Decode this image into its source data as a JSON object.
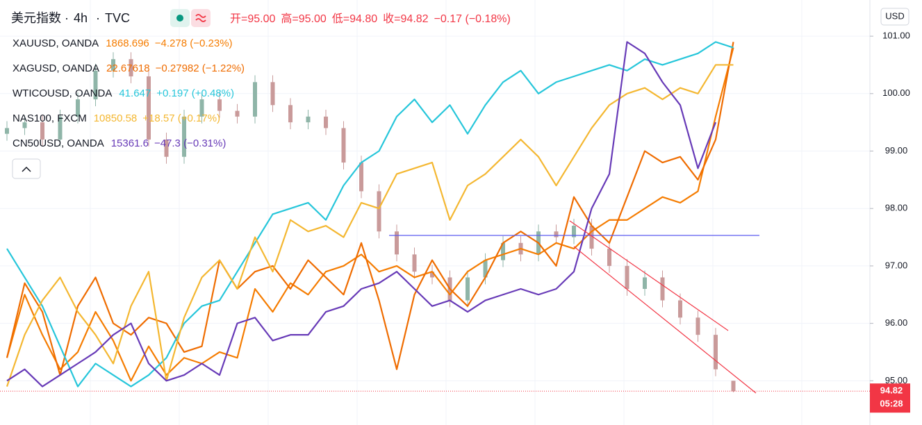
{
  "chart_data": {
    "type": "candlestick",
    "title": "美元指数",
    "interval": "4h",
    "source": "TVC",
    "ohlc_text": [
      "开=95.00",
      "高=95.00",
      "低=94.80",
      "收=94.82"
    ],
    "change_text": "−0.17 (−0.18%)",
    "currency": "USD",
    "last_price": {
      "value": 94.82,
      "label": "94.82"
    },
    "countdown": "05:28",
    "categories": [
      null,
      null,
      null,
      null,
      null,
      null,
      null,
      null,
      null,
      null,
      null,
      null,
      null,
      null,
      null,
      null,
      null,
      null,
      null,
      null,
      null,
      null,
      null,
      null,
      null,
      null,
      null,
      null,
      null,
      null,
      null,
      null,
      null,
      null,
      null,
      null,
      null,
      null,
      null,
      null,
      null,
      null
    ],
    "open": [
      99.3,
      99.4,
      99.5,
      99.2,
      99.6,
      99.9,
      100.4,
      100.6,
      100.3,
      99.2,
      98.9,
      99.6,
      99.9,
      99.7,
      99.6,
      100.2,
      99.8,
      99.5,
      99.6,
      99.4,
      98.8,
      98.3,
      97.6,
      97.2,
      96.9,
      96.8,
      96.4,
      96.8,
      97.1,
      97.4,
      97.2,
      97.6,
      97.5,
      97.7,
      97.3,
      97.0,
      96.6,
      96.8,
      96.4,
      96.1,
      95.8,
      95.0
    ],
    "high": [
      99.52,
      99.62,
      99.62,
      99.72,
      100.02,
      100.52,
      100.72,
      100.72,
      100.42,
      99.32,
      99.72,
      100.02,
      100.02,
      99.82,
      100.32,
      100.32,
      99.92,
      99.72,
      99.72,
      99.52,
      98.92,
      98.42,
      97.72,
      97.32,
      97.02,
      96.92,
      96.92,
      97.22,
      97.52,
      97.52,
      97.72,
      97.72,
      97.82,
      97.82,
      97.42,
      97.12,
      96.92,
      96.92,
      96.52,
      96.22,
      95.92,
      95.0
    ],
    "low": [
      99.18,
      99.28,
      99.08,
      99.08,
      99.48,
      99.78,
      100.28,
      100.18,
      99.08,
      98.78,
      98.78,
      99.48,
      99.58,
      99.48,
      99.48,
      99.68,
      99.38,
      99.38,
      99.28,
      98.68,
      98.18,
      97.48,
      97.08,
      96.78,
      96.68,
      96.28,
      96.28,
      96.68,
      96.98,
      97.08,
      97.08,
      97.38,
      97.38,
      97.18,
      96.88,
      96.48,
      96.48,
      96.28,
      95.98,
      95.68,
      95.08,
      94.8
    ],
    "close": [
      99.4,
      99.5,
      99.2,
      99.6,
      99.9,
      100.4,
      100.6,
      100.3,
      99.2,
      98.9,
      99.6,
      99.9,
      99.7,
      99.6,
      100.2,
      99.8,
      99.5,
      99.6,
      99.4,
      98.8,
      98.3,
      97.6,
      97.2,
      96.9,
      96.8,
      96.4,
      96.8,
      97.1,
      97.4,
      97.2,
      97.6,
      97.5,
      97.7,
      97.3,
      97.0,
      96.6,
      96.8,
      96.4,
      96.1,
      95.8,
      95.2,
      94.82
    ],
    "up_color": "#8fb5a8",
    "down_color": "#c99a9a",
    "series": [
      {
        "name": "XAUUSD, OANDA",
        "last": "1868.696",
        "change": "−4.278 (−0.23%)",
        "color": "#f57c00",
        "values": [
          95.4,
          96.5,
          95.8,
          95.2,
          95.5,
          96.2,
          95.7,
          95.0,
          95.6,
          95.1,
          95.4,
          95.3,
          95.5,
          95.4,
          96.6,
          96.2,
          96.7,
          96.5,
          96.9,
          97.0,
          97.2,
          96.9,
          97.0,
          96.8,
          96.9,
          96.5,
          96.9,
          97.1,
          97.2,
          97.3,
          97.2,
          97.4,
          97.3,
          97.6,
          97.8,
          97.8,
          98.0,
          98.2,
          98.1,
          98.3,
          99.6,
          100.8
        ]
      },
      {
        "name": "XAGUSD, OANDA",
        "last": "22.67618",
        "change": "−0.27982 (−1.22%)",
        "color": "#ef6c00",
        "values": [
          95.4,
          96.7,
          96.2,
          95.1,
          96.3,
          96.8,
          96.0,
          95.8,
          96.1,
          96.0,
          95.5,
          95.6,
          97.1,
          96.6,
          96.9,
          97.0,
          96.6,
          97.1,
          96.8,
          96.5,
          97.4,
          96.4,
          95.2,
          96.5,
          97.1,
          96.6,
          96.3,
          96.8,
          97.4,
          97.6,
          97.4,
          97.0,
          98.2,
          97.7,
          97.4,
          98.2,
          99.0,
          98.8,
          98.9,
          98.5,
          99.2,
          100.9
        ]
      },
      {
        "name": "WTICOUSD, OANDA",
        "last": "41.647",
        "change": "+0.197 (+0.48%)",
        "color": "#26c6da",
        "values": [
          97.3,
          96.8,
          96.3,
          95.6,
          94.9,
          95.3,
          95.1,
          94.9,
          95.1,
          95.4,
          96.0,
          96.3,
          96.4,
          96.9,
          97.4,
          97.9,
          98.0,
          98.1,
          97.8,
          98.4,
          98.8,
          99.0,
          99.6,
          99.9,
          99.5,
          99.8,
          99.3,
          99.8,
          100.2,
          100.4,
          100.0,
          100.2,
          100.3,
          100.4,
          100.5,
          100.4,
          100.6,
          100.5,
          100.6,
          100.7,
          100.9,
          100.8
        ]
      },
      {
        "name": "NAS100, FXCM",
        "last": "10850.58",
        "change": "+18.57 (+0.17%)",
        "color": "#f4b731",
        "values": [
          94.9,
          95.8,
          96.4,
          96.8,
          96.2,
          95.8,
          95.3,
          96.3,
          96.9,
          95.0,
          96.1,
          96.8,
          97.1,
          96.6,
          97.5,
          96.9,
          97.8,
          97.6,
          97.7,
          97.5,
          98.1,
          98.0,
          98.6,
          98.7,
          98.8,
          97.8,
          98.4,
          98.6,
          98.9,
          99.2,
          98.9,
          98.4,
          98.9,
          99.4,
          99.8,
          100.0,
          100.1,
          99.9,
          100.1,
          100.0,
          100.5,
          100.5
        ]
      },
      {
        "name": "CN50USD, OANDA",
        "last": "15361.6",
        "change": "−47.3 (−0.31%)",
        "color": "#673ab7",
        "values": [
          95.0,
          95.2,
          94.9,
          95.1,
          95.3,
          95.5,
          95.8,
          96.0,
          95.3,
          95.0,
          95.1,
          95.3,
          95.1,
          96.0,
          96.1,
          95.7,
          95.8,
          95.8,
          96.2,
          96.3,
          96.6,
          96.7,
          96.9,
          96.6,
          96.3,
          96.4,
          96.2,
          96.4,
          96.5,
          96.6,
          96.5,
          96.6,
          96.9,
          98.0,
          98.6,
          100.9,
          100.7,
          100.2,
          99.8,
          98.7,
          99.5,
          null
        ]
      }
    ],
    "ylim": [
      94.23,
      101.63
    ],
    "yticks": [
      {
        "value": 95,
        "label": "95.00"
      },
      {
        "value": 96,
        "label": "96.00"
      },
      {
        "value": 97,
        "label": "97.00"
      },
      {
        "value": 98,
        "label": "98.00"
      },
      {
        "value": 99,
        "label": "99.00"
      },
      {
        "value": 100,
        "label": "100.00"
      },
      {
        "value": 101,
        "label": "101.00"
      }
    ],
    "grid": true
  }
}
